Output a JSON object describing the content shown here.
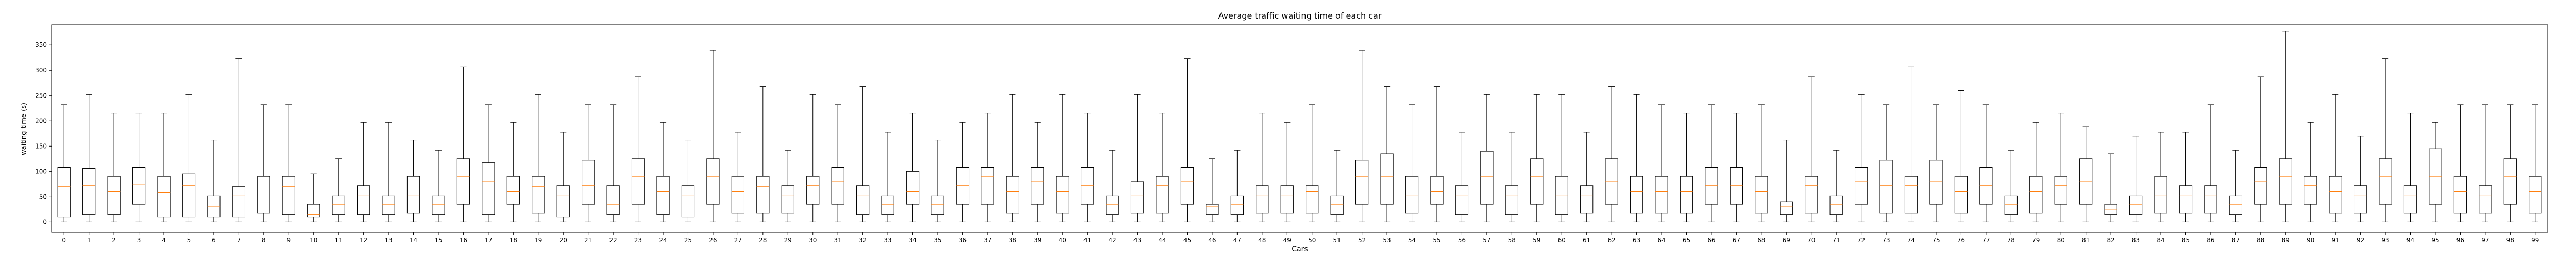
{
  "chart_data": {
    "type": "box",
    "title": "Average traffic waiting time of each car",
    "xlabel": "Cars",
    "ylabel": "waiting time (s)",
    "ylim": [
      -20,
      390
    ],
    "yticks": [
      0,
      50,
      100,
      150,
      200,
      250,
      300,
      350
    ],
    "grid": false,
    "legend": "none",
    "colors": {
      "box": "#000000",
      "median": "#ff7f0e",
      "axis": "#000000"
    },
    "categories": [
      "0",
      "1",
      "2",
      "3",
      "4",
      "5",
      "6",
      "7",
      "8",
      "9",
      "10",
      "11",
      "12",
      "13",
      "14",
      "15",
      "16",
      "17",
      "18",
      "19",
      "20",
      "21",
      "22",
      "23",
      "24",
      "25",
      "26",
      "27",
      "28",
      "29",
      "30",
      "31",
      "32",
      "33",
      "34",
      "35",
      "36",
      "37",
      "38",
      "39",
      "40",
      "41",
      "42",
      "43",
      "44",
      "45",
      "46",
      "47",
      "48",
      "49",
      "50",
      "51",
      "52",
      "53",
      "54",
      "55",
      "56",
      "57",
      "58",
      "59",
      "60",
      "61",
      "62",
      "63",
      "64",
      "65",
      "66",
      "67",
      "68",
      "69",
      "70",
      "71",
      "72",
      "73",
      "74",
      "75",
      "76",
      "77",
      "78",
      "79",
      "80",
      "81",
      "82",
      "83",
      "84",
      "85",
      "86",
      "87",
      "88",
      "89",
      "90",
      "91",
      "92",
      "93",
      "94",
      "95",
      "96",
      "97",
      "98",
      "99"
    ],
    "boxes": [
      {
        "min": 0,
        "q1": 10,
        "median": 70,
        "q3": 108,
        "max": 232
      },
      {
        "min": 0,
        "q1": 15,
        "median": 72,
        "q3": 106,
        "max": 252
      },
      {
        "min": 0,
        "q1": 15,
        "median": 60,
        "q3": 90,
        "max": 215
      },
      {
        "min": 0,
        "q1": 35,
        "median": 75,
        "q3": 108,
        "max": 215
      },
      {
        "min": 0,
        "q1": 10,
        "median": 58,
        "q3": 90,
        "max": 215
      },
      {
        "min": 0,
        "q1": 10,
        "median": 72,
        "q3": 95,
        "max": 252
      },
      {
        "min": 0,
        "q1": 10,
        "median": 30,
        "q3": 52,
        "max": 162
      },
      {
        "min": 0,
        "q1": 10,
        "median": 52,
        "q3": 70,
        "max": 323
      },
      {
        "min": 0,
        "q1": 18,
        "median": 55,
        "q3": 90,
        "max": 232
      },
      {
        "min": 0,
        "q1": 15,
        "median": 70,
        "q3": 90,
        "max": 232
      },
      {
        "min": 0,
        "q1": 10,
        "median": 15,
        "q3": 35,
        "max": 95
      },
      {
        "min": 0,
        "q1": 15,
        "median": 35,
        "q3": 52,
        "max": 125
      },
      {
        "min": 0,
        "q1": 15,
        "median": 52,
        "q3": 72,
        "max": 197
      },
      {
        "min": 0,
        "q1": 15,
        "median": 35,
        "q3": 52,
        "max": 197
      },
      {
        "min": 0,
        "q1": 18,
        "median": 52,
        "q3": 90,
        "max": 162
      },
      {
        "min": 0,
        "q1": 15,
        "median": 35,
        "q3": 52,
        "max": 142
      },
      {
        "min": 0,
        "q1": 35,
        "median": 90,
        "q3": 125,
        "max": 307
      },
      {
        "min": 0,
        "q1": 15,
        "median": 80,
        "q3": 118,
        "max": 232
      },
      {
        "min": 0,
        "q1": 35,
        "median": 60,
        "q3": 90,
        "max": 197
      },
      {
        "min": 0,
        "q1": 18,
        "median": 70,
        "q3": 90,
        "max": 252
      },
      {
        "min": 0,
        "q1": 10,
        "median": 52,
        "q3": 72,
        "max": 178
      },
      {
        "min": 0,
        "q1": 35,
        "median": 72,
        "q3": 122,
        "max": 232
      },
      {
        "min": 0,
        "q1": 15,
        "median": 35,
        "q3": 72,
        "max": 232
      },
      {
        "min": 0,
        "q1": 35,
        "median": 90,
        "q3": 125,
        "max": 287
      },
      {
        "min": 0,
        "q1": 15,
        "median": 60,
        "q3": 90,
        "max": 197
      },
      {
        "min": 0,
        "q1": 10,
        "median": 52,
        "q3": 72,
        "max": 162
      },
      {
        "min": 0,
        "q1": 35,
        "median": 90,
        "q3": 125,
        "max": 340
      },
      {
        "min": 0,
        "q1": 18,
        "median": 60,
        "q3": 90,
        "max": 178
      },
      {
        "min": 0,
        "q1": 18,
        "median": 70,
        "q3": 90,
        "max": 268
      },
      {
        "min": 0,
        "q1": 18,
        "median": 52,
        "q3": 72,
        "max": 142
      },
      {
        "min": 0,
        "q1": 35,
        "median": 72,
        "q3": 90,
        "max": 252
      },
      {
        "min": 0,
        "q1": 35,
        "median": 80,
        "q3": 108,
        "max": 232
      },
      {
        "min": 0,
        "q1": 15,
        "median": 52,
        "q3": 72,
        "max": 268
      },
      {
        "min": 0,
        "q1": 15,
        "median": 35,
        "q3": 52,
        "max": 178
      },
      {
        "min": 0,
        "q1": 35,
        "median": 60,
        "q3": 100,
        "max": 215
      },
      {
        "min": 0,
        "q1": 15,
        "median": 35,
        "q3": 52,
        "max": 162
      },
      {
        "min": 0,
        "q1": 35,
        "median": 72,
        "q3": 108,
        "max": 197
      },
      {
        "min": 0,
        "q1": 35,
        "median": 90,
        "q3": 108,
        "max": 215
      },
      {
        "min": 0,
        "q1": 18,
        "median": 60,
        "q3": 90,
        "max": 252
      },
      {
        "min": 0,
        "q1": 35,
        "median": 80,
        "q3": 108,
        "max": 197
      },
      {
        "min": 0,
        "q1": 18,
        "median": 60,
        "q3": 90,
        "max": 252
      },
      {
        "min": 0,
        "q1": 35,
        "median": 72,
        "q3": 108,
        "max": 215
      },
      {
        "min": 0,
        "q1": 15,
        "median": 35,
        "q3": 52,
        "max": 142
      },
      {
        "min": 0,
        "q1": 18,
        "median": 52,
        "q3": 80,
        "max": 252
      },
      {
        "min": 0,
        "q1": 18,
        "median": 72,
        "q3": 90,
        "max": 215
      },
      {
        "min": 0,
        "q1": 35,
        "median": 80,
        "q3": 108,
        "max": 323
      },
      {
        "min": 0,
        "q1": 15,
        "median": 30,
        "q3": 35,
        "max": 125
      },
      {
        "min": 0,
        "q1": 15,
        "median": 35,
        "q3": 52,
        "max": 142
      },
      {
        "min": 0,
        "q1": 18,
        "median": 52,
        "q3": 72,
        "max": 215
      },
      {
        "min": 0,
        "q1": 18,
        "median": 52,
        "q3": 72,
        "max": 197
      },
      {
        "min": 0,
        "q1": 18,
        "median": 60,
        "q3": 72,
        "max": 232
      },
      {
        "min": 0,
        "q1": 15,
        "median": 35,
        "q3": 52,
        "max": 142
      },
      {
        "min": 0,
        "q1": 35,
        "median": 90,
        "q3": 122,
        "max": 340
      },
      {
        "min": 0,
        "q1": 35,
        "median": 90,
        "q3": 135,
        "max": 268
      },
      {
        "min": 0,
        "q1": 18,
        "median": 52,
        "q3": 90,
        "max": 232
      },
      {
        "min": 0,
        "q1": 35,
        "median": 60,
        "q3": 90,
        "max": 268
      },
      {
        "min": 0,
        "q1": 15,
        "median": 52,
        "q3": 72,
        "max": 178
      },
      {
        "min": 0,
        "q1": 35,
        "median": 90,
        "q3": 140,
        "max": 252
      },
      {
        "min": 0,
        "q1": 15,
        "median": 52,
        "q3": 72,
        "max": 178
      },
      {
        "min": 0,
        "q1": 35,
        "median": 90,
        "q3": 125,
        "max": 252
      },
      {
        "min": 0,
        "q1": 15,
        "median": 52,
        "q3": 90,
        "max": 252
      },
      {
        "min": 0,
        "q1": 18,
        "median": 52,
        "q3": 72,
        "max": 178
      },
      {
        "min": 0,
        "q1": 35,
        "median": 80,
        "q3": 125,
        "max": 268
      },
      {
        "min": 0,
        "q1": 18,
        "median": 60,
        "q3": 90,
        "max": 252
      },
      {
        "min": 0,
        "q1": 18,
        "median": 60,
        "q3": 90,
        "max": 232
      },
      {
        "min": 0,
        "q1": 18,
        "median": 60,
        "q3": 90,
        "max": 215
      },
      {
        "min": 0,
        "q1": 35,
        "median": 72,
        "q3": 108,
        "max": 232
      },
      {
        "min": 0,
        "q1": 35,
        "median": 72,
        "q3": 108,
        "max": 215
      },
      {
        "min": 0,
        "q1": 18,
        "median": 60,
        "q3": 90,
        "max": 232
      },
      {
        "min": 0,
        "q1": 15,
        "median": 30,
        "q3": 40,
        "max": 162
      },
      {
        "min": 0,
        "q1": 18,
        "median": 72,
        "q3": 90,
        "max": 287
      },
      {
        "min": 0,
        "q1": 15,
        "median": 35,
        "q3": 52,
        "max": 142
      },
      {
        "min": 0,
        "q1": 35,
        "median": 80,
        "q3": 108,
        "max": 252
      },
      {
        "min": 0,
        "q1": 18,
        "median": 72,
        "q3": 122,
        "max": 232
      },
      {
        "min": 0,
        "q1": 18,
        "median": 72,
        "q3": 90,
        "max": 307
      },
      {
        "min": 0,
        "q1": 35,
        "median": 80,
        "q3": 122,
        "max": 232
      },
      {
        "min": 0,
        "q1": 18,
        "median": 60,
        "q3": 90,
        "max": 260
      },
      {
        "min": 0,
        "q1": 35,
        "median": 72,
        "q3": 108,
        "max": 232
      },
      {
        "min": 0,
        "q1": 15,
        "median": 35,
        "q3": 52,
        "max": 142
      },
      {
        "min": 0,
        "q1": 18,
        "median": 60,
        "q3": 90,
        "max": 197
      },
      {
        "min": 0,
        "q1": 35,
        "median": 72,
        "q3": 90,
        "max": 215
      },
      {
        "min": 0,
        "q1": 35,
        "median": 80,
        "q3": 125,
        "max": 188
      },
      {
        "min": 0,
        "q1": 15,
        "median": 25,
        "q3": 35,
        "max": 135
      },
      {
        "min": 0,
        "q1": 15,
        "median": 35,
        "q3": 52,
        "max": 170
      },
      {
        "min": 0,
        "q1": 18,
        "median": 52,
        "q3": 90,
        "max": 178
      },
      {
        "min": 0,
        "q1": 18,
        "median": 52,
        "q3": 72,
        "max": 178
      },
      {
        "min": 0,
        "q1": 18,
        "median": 52,
        "q3": 72,
        "max": 232
      },
      {
        "min": 0,
        "q1": 15,
        "median": 35,
        "q3": 52,
        "max": 142
      },
      {
        "min": 0,
        "q1": 35,
        "median": 80,
        "q3": 108,
        "max": 287
      },
      {
        "min": 0,
        "q1": 35,
        "median": 90,
        "q3": 125,
        "max": 377
      },
      {
        "min": 0,
        "q1": 35,
        "median": 72,
        "q3": 90,
        "max": 197
      },
      {
        "min": 0,
        "q1": 18,
        "median": 60,
        "q3": 90,
        "max": 252
      },
      {
        "min": 0,
        "q1": 18,
        "median": 52,
        "q3": 72,
        "max": 170
      },
      {
        "min": 0,
        "q1": 35,
        "median": 90,
        "q3": 125,
        "max": 323
      },
      {
        "min": 0,
        "q1": 18,
        "median": 52,
        "q3": 72,
        "max": 215
      },
      {
        "min": 0,
        "q1": 35,
        "median": 90,
        "q3": 145,
        "max": 197
      },
      {
        "min": 0,
        "q1": 18,
        "median": 60,
        "q3": 90,
        "max": 232
      },
      {
        "min": 0,
        "q1": 18,
        "median": 52,
        "q3": 72,
        "max": 232
      },
      {
        "min": 0,
        "q1": 35,
        "median": 90,
        "q3": 125,
        "max": 232
      },
      {
        "min": 0,
        "q1": 18,
        "median": 60,
        "q3": 90,
        "max": 232
      }
    ]
  }
}
